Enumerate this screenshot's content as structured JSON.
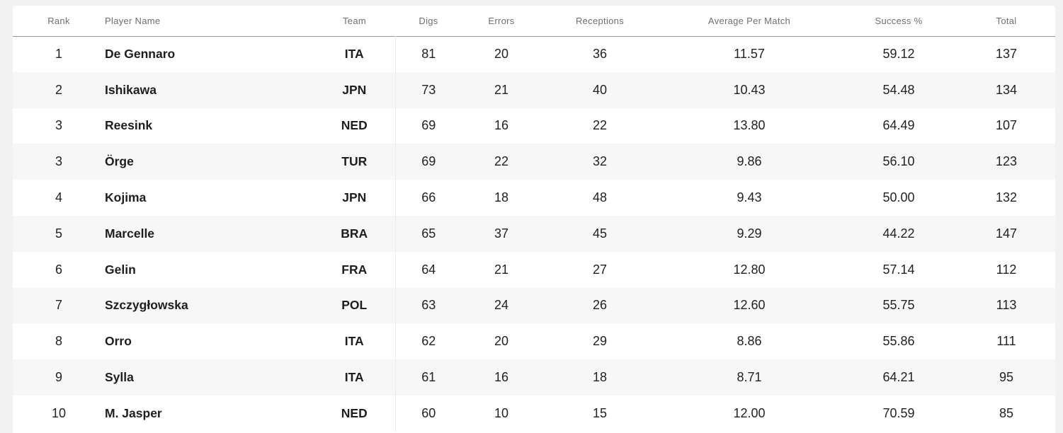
{
  "table": {
    "columns": {
      "rank": "Rank",
      "player": "Player Name",
      "team": "Team",
      "digs": "Digs",
      "errors": "Errors",
      "receptions": "Receptions",
      "avg": "Average Per Match",
      "success": "Success %",
      "total": "Total"
    },
    "rows": [
      {
        "rank": "1",
        "player": "De Gennaro",
        "team": "ITA",
        "digs": "81",
        "errors": "20",
        "receptions": "36",
        "avg": "11.57",
        "success": "59.12",
        "total": "137"
      },
      {
        "rank": "2",
        "player": "Ishikawa",
        "team": "JPN",
        "digs": "73",
        "errors": "21",
        "receptions": "40",
        "avg": "10.43",
        "success": "54.48",
        "total": "134"
      },
      {
        "rank": "3",
        "player": "Reesink",
        "team": "NED",
        "digs": "69",
        "errors": "16",
        "receptions": "22",
        "avg": "13.80",
        "success": "64.49",
        "total": "107"
      },
      {
        "rank": "3",
        "player": "Örge",
        "team": "TUR",
        "digs": "69",
        "errors": "22",
        "receptions": "32",
        "avg": "9.86",
        "success": "56.10",
        "total": "123"
      },
      {
        "rank": "4",
        "player": "Kojima",
        "team": "JPN",
        "digs": "66",
        "errors": "18",
        "receptions": "48",
        "avg": "9.43",
        "success": "50.00",
        "total": "132"
      },
      {
        "rank": "5",
        "player": "Marcelle",
        "team": "BRA",
        "digs": "65",
        "errors": "37",
        "receptions": "45",
        "avg": "9.29",
        "success": "44.22",
        "total": "147"
      },
      {
        "rank": "6",
        "player": "Gelin",
        "team": "FRA",
        "digs": "64",
        "errors": "21",
        "receptions": "27",
        "avg": "12.80",
        "success": "57.14",
        "total": "112"
      },
      {
        "rank": "7",
        "player": "Szczygłowska",
        "team": "POL",
        "digs": "63",
        "errors": "24",
        "receptions": "26",
        "avg": "12.60",
        "success": "55.75",
        "total": "113"
      },
      {
        "rank": "8",
        "player": "Orro",
        "team": "ITA",
        "digs": "62",
        "errors": "20",
        "receptions": "29",
        "avg": "8.86",
        "success": "55.86",
        "total": "111"
      },
      {
        "rank": "9",
        "player": "Sylla",
        "team": "ITA",
        "digs": "61",
        "errors": "16",
        "receptions": "18",
        "avg": "8.71",
        "success": "64.21",
        "total": "95"
      },
      {
        "rank": "10",
        "player": "M. Jasper",
        "team": "NED",
        "digs": "60",
        "errors": "10",
        "receptions": "15",
        "avg": "12.00",
        "success": "70.59",
        "total": "85"
      }
    ]
  }
}
